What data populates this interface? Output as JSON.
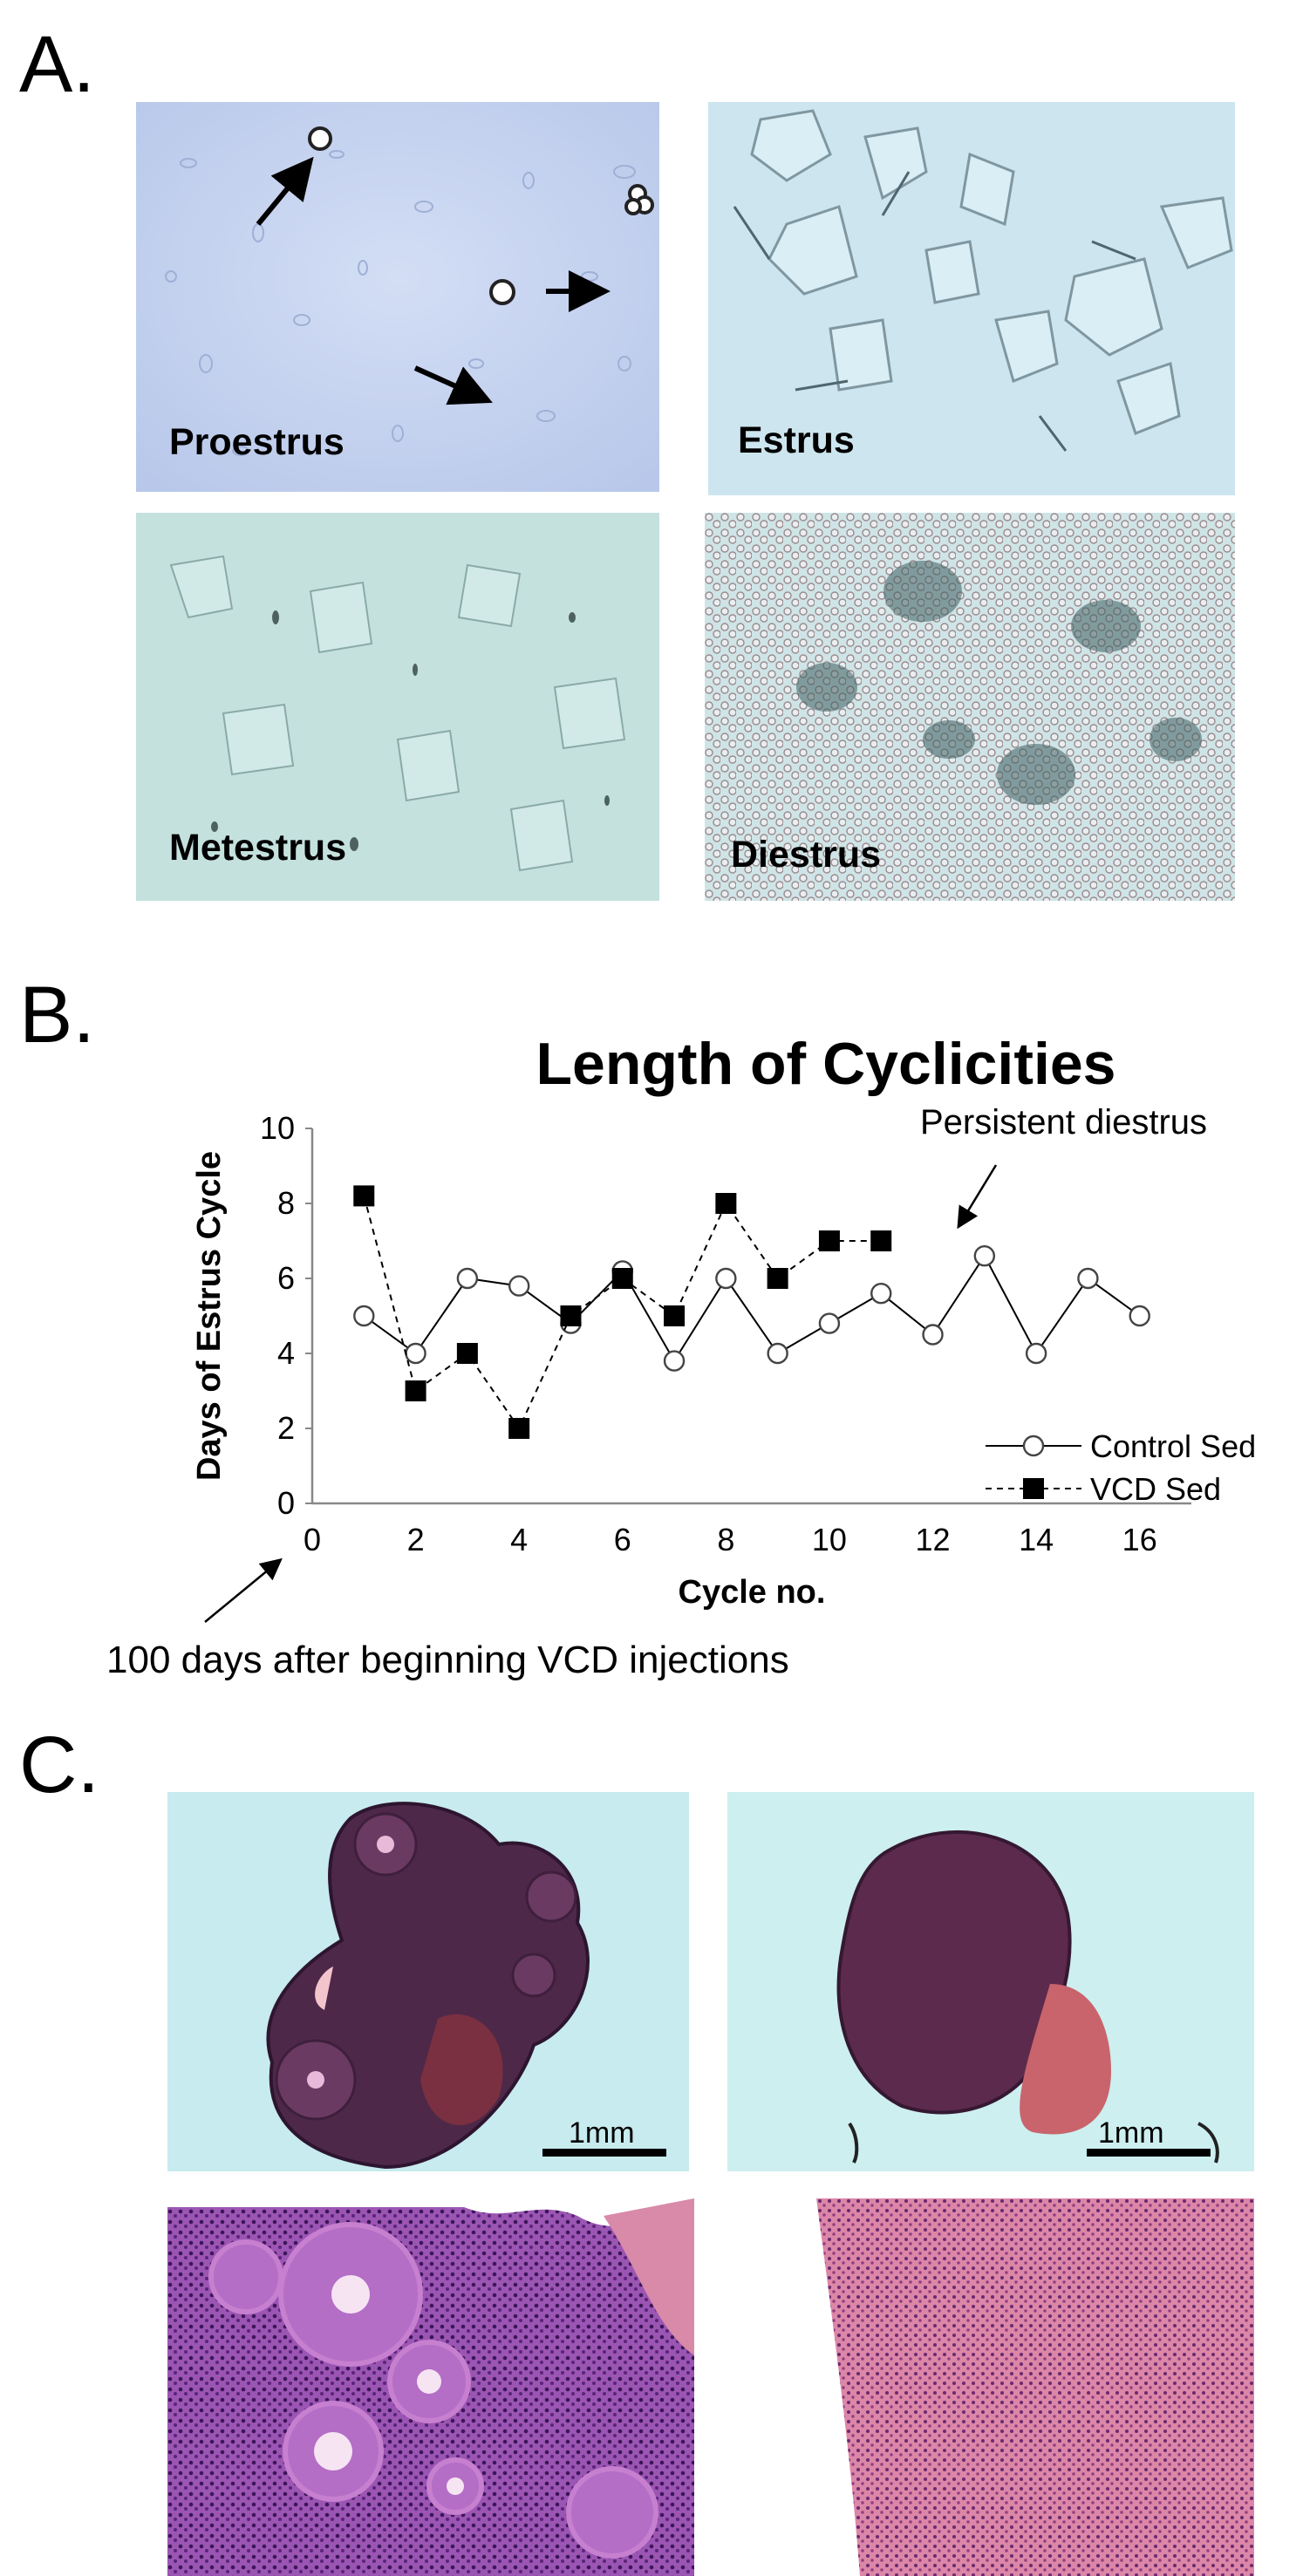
{
  "panels": {
    "a_label": "A.",
    "b_label": "B.",
    "c_label": "C."
  },
  "panel_a": {
    "images": [
      {
        "label": "Proestrus"
      },
      {
        "label": "Estrus"
      },
      {
        "label": "Metestrus"
      },
      {
        "label": "Diestrus"
      }
    ]
  },
  "panel_c": {
    "scale_bar_left": "1mm",
    "scale_bar_right": "1mm"
  },
  "chart_data": {
    "type": "line",
    "title": "Length of Cyclicities",
    "xlabel": "Cycle no.",
    "ylabel": "Days of Estrus Cycle",
    "xlim": [
      0,
      17
    ],
    "ylim": [
      0,
      10
    ],
    "xticks": [
      0,
      2,
      4,
      6,
      8,
      10,
      12,
      14,
      16
    ],
    "yticks": [
      0,
      2,
      4,
      6,
      8,
      10
    ],
    "grid": false,
    "legend_position": "right",
    "series": [
      {
        "name": "Control Sed",
        "marker": "open-circle",
        "line": "solid",
        "x": [
          1,
          2,
          3,
          4,
          5,
          6,
          7,
          8,
          9,
          10,
          11,
          12,
          13,
          14,
          15,
          16
        ],
        "y": [
          5,
          4,
          6,
          5.8,
          4.8,
          6.2,
          3.8,
          6,
          4,
          4.8,
          5.6,
          4.5,
          6.6,
          4,
          6,
          5
        ]
      },
      {
        "name": "VCD Sed",
        "marker": "filled-square",
        "line": "dashed",
        "x": [
          1,
          2,
          3,
          4,
          5,
          6,
          7,
          8,
          9,
          10,
          11
        ],
        "y": [
          8.2,
          3,
          4,
          2,
          5,
          6,
          5,
          8,
          6,
          7,
          7
        ]
      }
    ],
    "annotations": [
      {
        "text": "Persistent diestrus"
      },
      {
        "text": "100 days after beginning VCD injections"
      }
    ]
  }
}
